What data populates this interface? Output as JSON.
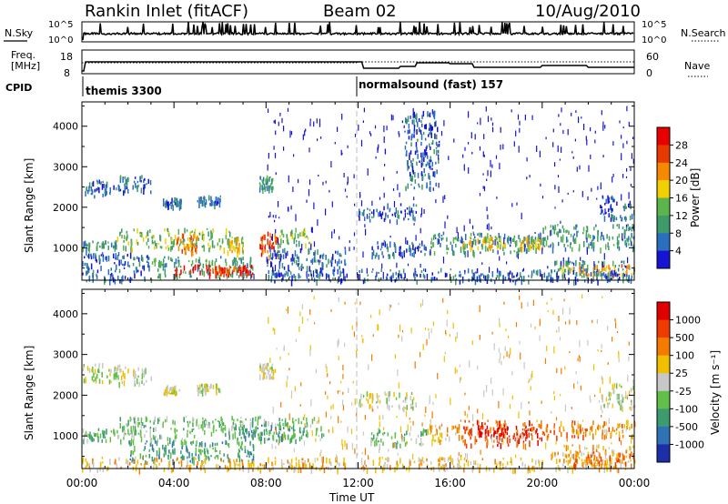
{
  "header": {
    "station": "Rankin Inlet (fitACF)",
    "beam": "Beam 02",
    "date": "10/Aug/2010"
  },
  "top_panel": {
    "left_label": "N.Sky",
    "left_ticks": [
      "10^5",
      "10^0"
    ],
    "right_ticks": [
      "10^5",
      "10^0"
    ],
    "right_label": "N.Search"
  },
  "freq_panel": {
    "left_label_1": "Freq.",
    "left_label_2": "[MHz]",
    "left_ticks": [
      "18",
      "8"
    ],
    "right_ticks": [
      "60",
      "0"
    ],
    "right_label": "Nave"
  },
  "cpid": {
    "label": "CPID",
    "segments": [
      {
        "text": "themis 3300",
        "start_hour": 0
      },
      {
        "text": "normalsound (fast) 157",
        "start_hour": 12
      }
    ]
  },
  "axes": {
    "ylabel": "Slant Range [km]",
    "y_ticks": [
      1000,
      2000,
      3000,
      4000
    ],
    "ylim": [
      200,
      4600
    ],
    "x_ticks": [
      "00:00",
      "04:00",
      "08:00",
      "12:00",
      "16:00",
      "20:00",
      "00:00"
    ],
    "xlim_hours": [
      0,
      24
    ],
    "xlabel": "Time UT"
  },
  "chart_data": [
    {
      "type": "heatmap",
      "name": "power",
      "colorbar_label": "Power [dB]",
      "colorbar_ticks": [
        "28",
        "24",
        "20",
        "16",
        "12",
        "8",
        "4"
      ],
      "colors": [
        "#1414d2",
        "#2a6ec0",
        "#3f9a6a",
        "#5cb54a",
        "#f0d000",
        "#f58a00",
        "#e83a00",
        "#e80000"
      ],
      "regions": [
        {
          "t": [
            0.0,
            1.5
          ],
          "r": [
            2300,
            2700
          ],
          "level": 1
        },
        {
          "t": [
            1.5,
            3.0
          ],
          "r": [
            2400,
            2800
          ],
          "level": 1
        },
        {
          "t": [
            3.5,
            4.3
          ],
          "r": [
            2050,
            2250
          ],
          "level": 1
        },
        {
          "t": [
            5.0,
            6.0
          ],
          "r": [
            2100,
            2300
          ],
          "level": 1
        },
        {
          "t": [
            7.7,
            8.3
          ],
          "r": [
            2450,
            2800
          ],
          "level": 2
        },
        {
          "t": [
            0.0,
            1.5
          ],
          "r": [
            1000,
            1200
          ],
          "level": 2
        },
        {
          "t": [
            1.5,
            5.0
          ],
          "r": [
            1000,
            1500
          ],
          "level": 3
        },
        {
          "t": [
            4.0,
            5.0
          ],
          "r": [
            900,
            1400
          ],
          "level": 5
        },
        {
          "t": [
            5.0,
            6.5
          ],
          "r": [
            1000,
            1500
          ],
          "level": 3
        },
        {
          "t": [
            6.3,
            7.0
          ],
          "r": [
            900,
            1300
          ],
          "level": 4
        },
        {
          "t": [
            7.7,
            8.5
          ],
          "r": [
            800,
            1400
          ],
          "level": 6
        },
        {
          "t": [
            8.5,
            10.0
          ],
          "r": [
            1100,
            1500
          ],
          "level": 3
        },
        {
          "t": [
            3.0,
            7.5
          ],
          "r": [
            300,
            800
          ],
          "level": 2
        },
        {
          "t": [
            4.0,
            7.5
          ],
          "r": [
            350,
            600
          ],
          "level": 7
        },
        {
          "t": [
            5.5,
            7.2
          ],
          "r": [
            400,
            550
          ],
          "level": 6
        },
        {
          "t": [
            0.0,
            3.0
          ],
          "r": [
            200,
            900
          ],
          "level": 1
        },
        {
          "t": [
            8.0,
            11.5
          ],
          "r": [
            200,
            1000
          ],
          "level": 1
        },
        {
          "t": [
            12.0,
            14.5
          ],
          "r": [
            1700,
            2100
          ],
          "level": 1
        },
        {
          "t": [
            12.5,
            15.0
          ],
          "r": [
            800,
            1200
          ],
          "level": 1
        },
        {
          "t": [
            15.0,
            20.0
          ],
          "r": [
            900,
            1400
          ],
          "level": 2
        },
        {
          "t": [
            16.5,
            18.5
          ],
          "r": [
            1000,
            1300
          ],
          "level": 4
        },
        {
          "t": [
            19.0,
            20.0
          ],
          "r": [
            1000,
            1300
          ],
          "level": 4
        },
        {
          "t": [
            20.0,
            24.0
          ],
          "r": [
            1000,
            1600
          ],
          "level": 2
        },
        {
          "t": [
            20.5,
            24.0
          ],
          "r": [
            300,
            700
          ],
          "level": 2
        },
        {
          "t": [
            20.8,
            24.0
          ],
          "r": [
            350,
            600
          ],
          "level": 5
        },
        {
          "t": [
            22.5,
            24.0
          ],
          "r": [
            1700,
            2300
          ],
          "level": 1
        },
        {
          "t": [
            12.0,
            24.0
          ],
          "r": [
            200,
            500
          ],
          "level": 1
        },
        {
          "t": [
            14.0,
            15.5
          ],
          "r": [
            2500,
            4400
          ],
          "level": 1
        }
      ]
    },
    {
      "type": "heatmap",
      "name": "velocity",
      "colorbar_label": "Velocity [m s⁻¹]",
      "colorbar_ticks": [
        "1000",
        "500",
        "100",
        "25",
        "-25",
        "-100",
        "-500",
        "-1000"
      ],
      "colors": [
        "#1c2ea8",
        "#2f73b5",
        "#3c9c70",
        "#62c04a",
        "#c8c8c8",
        "#f0c000",
        "#f57a00",
        "#f03a00",
        "#e00000"
      ],
      "regions": [
        {
          "t": [
            0.0,
            3.0
          ],
          "r": [
            2300,
            2800
          ],
          "level": 4
        },
        {
          "t": [
            3.5,
            4.3
          ],
          "r": [
            2050,
            2250
          ],
          "level": 4
        },
        {
          "t": [
            5.0,
            6.0
          ],
          "r": [
            2100,
            2300
          ],
          "level": 4
        },
        {
          "t": [
            7.7,
            8.3
          ],
          "r": [
            2450,
            2800
          ],
          "level": 4
        },
        {
          "t": [
            0.0,
            1.5
          ],
          "r": [
            900,
            1200
          ],
          "level": 3
        },
        {
          "t": [
            1.5,
            4.5
          ],
          "r": [
            900,
            1500
          ],
          "level": 3
        },
        {
          "t": [
            4.5,
            10.5
          ],
          "r": [
            1000,
            1500
          ],
          "level": 3
        },
        {
          "t": [
            2.0,
            7.5
          ],
          "r": [
            400,
            900
          ],
          "level": 2
        },
        {
          "t": [
            6.5,
            9.5
          ],
          "r": [
            900,
            1300
          ],
          "level": 2
        },
        {
          "t": [
            0.0,
            11.5
          ],
          "r": [
            200,
            500
          ],
          "level": 5
        },
        {
          "t": [
            12.0,
            14.5
          ],
          "r": [
            1700,
            2100
          ],
          "level": 4
        },
        {
          "t": [
            12.5,
            15.0
          ],
          "r": [
            800,
            1200
          ],
          "level": 3
        },
        {
          "t": [
            15.0,
            16.5
          ],
          "r": [
            900,
            1300
          ],
          "level": 5
        },
        {
          "t": [
            16.5,
            20.0
          ],
          "r": [
            800,
            1400
          ],
          "level": 7
        },
        {
          "t": [
            17.0,
            19.5
          ],
          "r": [
            1000,
            1300
          ],
          "level": 8
        },
        {
          "t": [
            20.0,
            24.0
          ],
          "r": [
            1000,
            1400
          ],
          "level": 6
        },
        {
          "t": [
            20.5,
            24.0
          ],
          "r": [
            200,
            800
          ],
          "level": 5
        },
        {
          "t": [
            21.0,
            24.0
          ],
          "r": [
            300,
            650
          ],
          "level": 6
        },
        {
          "t": [
            22.5,
            24.0
          ],
          "r": [
            1700,
            2300
          ],
          "level": 4
        },
        {
          "t": [
            12.0,
            20.0
          ],
          "r": [
            200,
            500
          ],
          "level": 5
        }
      ]
    }
  ]
}
